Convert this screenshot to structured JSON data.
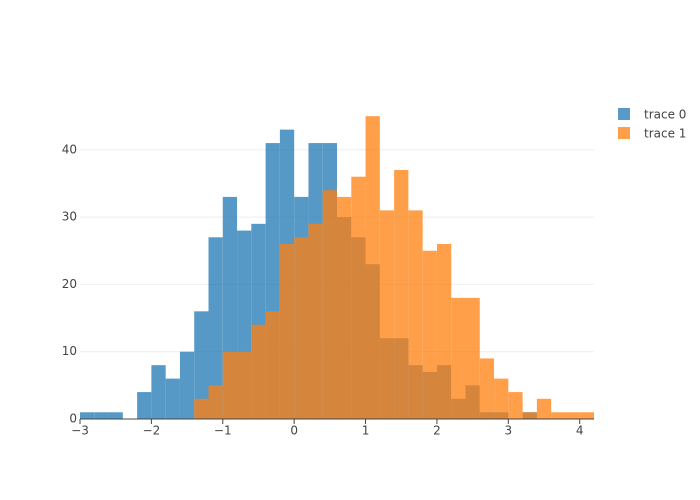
{
  "chart_data": {
    "type": "histogram",
    "bins": [
      -3,
      -2.8,
      -2.6,
      -2.4,
      -2.2,
      -2,
      -1.8,
      -1.6,
      -1.4,
      -1.2,
      -1,
      -0.8,
      -0.6,
      -0.4,
      -0.2,
      0,
      0.2,
      0.4,
      0.6,
      0.8,
      1,
      1.2,
      1.4,
      1.6,
      1.8,
      2,
      2.2,
      2.4,
      2.6,
      2.8,
      3,
      3.2,
      3.4,
      3.6,
      3.8,
      4,
      4.2
    ],
    "series": [
      {
        "name": "trace 0",
        "color": "#1f77b4",
        "values": [
          1,
          1,
          1,
          0,
          4,
          8,
          6,
          10,
          16,
          27,
          33,
          28,
          29,
          41,
          43,
          33,
          41,
          41,
          30,
          27,
          23,
          12,
          12,
          8,
          7,
          8,
          3,
          5,
          1,
          1,
          0,
          1,
          0,
          0,
          0,
          0
        ]
      },
      {
        "name": "trace 1",
        "color": "#ff7f0e",
        "values": [
          0,
          0,
          0,
          0,
          0,
          0,
          0,
          0,
          3,
          5,
          10,
          10,
          14,
          16,
          26,
          27,
          29,
          34,
          33,
          36,
          45,
          31,
          37,
          31,
          25,
          26,
          18,
          18,
          9,
          6,
          4,
          1,
          3,
          1,
          1,
          1
        ]
      }
    ],
    "opacity": 0.75,
    "xlim": [
      -3,
      4.2
    ],
    "xticks": [
      {
        "value": -3,
        "label": "−3"
      },
      {
        "value": -2,
        "label": "−2"
      },
      {
        "value": -1,
        "label": "−1"
      },
      0,
      1,
      2,
      3,
      4
    ],
    "ylim": [
      0,
      47.4
    ],
    "yticks": [
      0,
      10,
      20,
      30,
      40
    ],
    "grid": true
  }
}
